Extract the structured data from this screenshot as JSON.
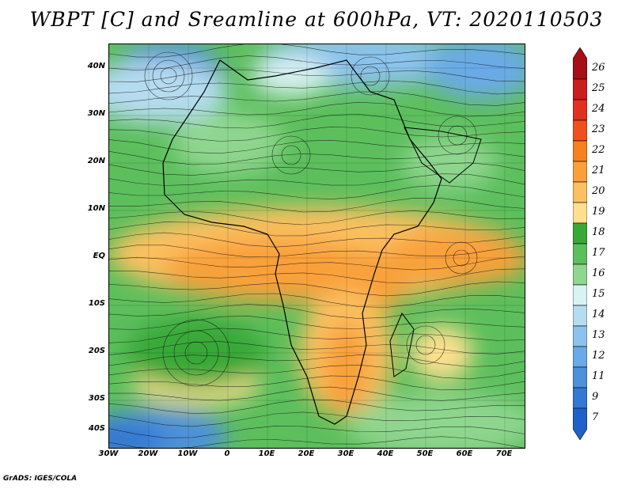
{
  "title": "WBPT [C] and Sreamline at 600hPa, VT: 2020110503",
  "credit": "GrADS: IGES/COLA",
  "lat_labels": [
    "40N",
    "30N",
    "20N",
    "10N",
    "EQ",
    "10S",
    "20S",
    "30S",
    "40S"
  ],
  "lon_labels": [
    "30W",
    "20W",
    "10W",
    "0",
    "10E",
    "20E",
    "30E",
    "40E",
    "50E",
    "60E",
    "70E"
  ],
  "colorbar": {
    "labels": [
      "26",
      "25",
      "24",
      "23",
      "22",
      "21",
      "20",
      "19",
      "18",
      "17",
      "16",
      "15",
      "14",
      "13",
      "12",
      "11",
      "9",
      "7"
    ],
    "colors": [
      "#a50f15",
      "#c81e1e",
      "#e03020",
      "#f05020",
      "#f78020",
      "#f9a03a",
      "#fbc060",
      "#fde08f",
      "#38a838",
      "#5cbf5c",
      "#8fd68f",
      "#d9f2f2",
      "#b6dcf0",
      "#8cc3ec",
      "#6aaae6",
      "#4d90dc",
      "#3578d4",
      "#2060c8"
    ]
  },
  "map": {
    "region": "Africa and Atlantic / Indian Ocean",
    "lon_range": [
      -30,
      75
    ],
    "lat_range": [
      -40,
      45
    ],
    "field": "WBPT",
    "level": "600hPa",
    "valid_time": "2020110503"
  }
}
